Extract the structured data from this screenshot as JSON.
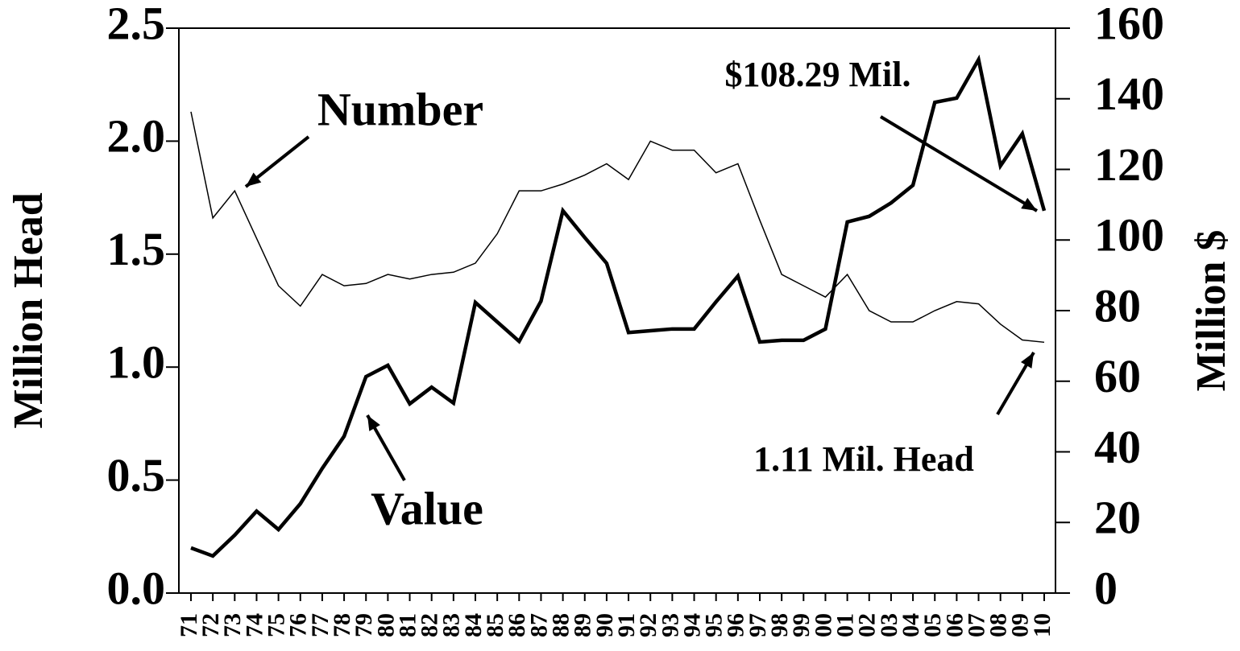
{
  "chart_data": {
    "type": "line",
    "categories": [
      "71",
      "72",
      "73",
      "74",
      "75",
      "76",
      "77",
      "78",
      "79",
      "80",
      "81",
      "82",
      "83",
      "84",
      "85",
      "86",
      "87",
      "88",
      "89",
      "90",
      "91",
      "92",
      "93",
      "94",
      "95",
      "96",
      "97",
      "98",
      "99",
      "00",
      "01",
      "02",
      "03",
      "04",
      "05",
      "06",
      "07",
      "08",
      "09",
      "10"
    ],
    "series": [
      {
        "name": "Number",
        "color": "#000000",
        "axis": "y",
        "values": [
          2.13,
          1.66,
          1.78,
          1.57,
          1.36,
          1.27,
          1.41,
          1.36,
          1.37,
          1.41,
          1.39,
          1.41,
          1.42,
          1.46,
          1.59,
          1.78,
          1.78,
          1.81,
          1.85,
          1.9,
          1.83,
          2.0,
          1.96,
          1.96,
          1.86,
          1.9,
          1.65,
          1.41,
          1.36,
          1.31,
          1.41,
          1.25,
          1.2,
          1.2,
          1.25,
          1.29,
          1.28,
          1.19,
          1.12,
          1.11
        ]
      },
      {
        "name": "Value",
        "color": "#000000",
        "axis": "y2",
        "values": [
          12.8,
          10.5,
          16.4,
          23.2,
          18.0,
          25.3,
          35.3,
          44.4,
          61.3,
          64.5,
          53.6,
          58.3,
          53.8,
          82.3,
          76.8,
          71.3,
          82.7,
          108.3,
          100.7,
          93.4,
          73.8,
          74.3,
          74.8,
          74.8,
          82.5,
          89.8,
          71.1,
          71.6,
          71.6,
          74.8,
          105.1,
          106.7,
          110.5,
          115.5,
          139.0,
          140.2,
          151.1,
          121.0,
          130.1,
          108.29
        ]
      }
    ],
    "ylabel": "Million Head",
    "y2label": "Million $",
    "ylim": [
      0,
      2.5
    ],
    "yticks": [
      {
        "value": 0,
        "label": "0.0"
      },
      0.5,
      {
        "value": 1,
        "label": "1.0"
      },
      1.5,
      {
        "value": 2,
        "label": "2.0"
      },
      2.5
    ],
    "y2lim": [
      0,
      160
    ],
    "y2ticks": [
      0,
      20,
      40,
      60,
      80,
      100,
      120,
      140,
      160
    ],
    "annotations": [
      "Number",
      "Value",
      "$108.29 Mil.",
      "1.11 Mil. Head"
    ]
  }
}
